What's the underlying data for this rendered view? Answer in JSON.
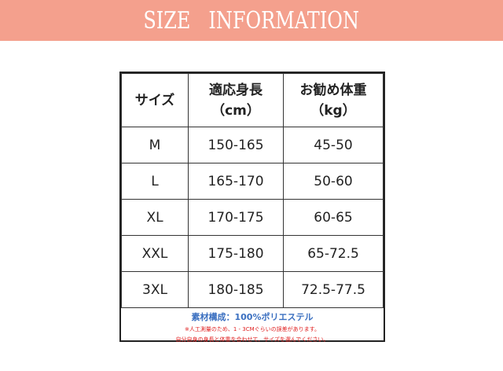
{
  "banner": {
    "title": "SIZE   INFORMATION",
    "color": "#f4a08d"
  },
  "table": {
    "headers": [
      [
        "サイズ"
      ],
      [
        "適応身長",
        "（cm）"
      ],
      [
        "お勧め体重",
        "（kg）"
      ]
    ],
    "rows": [
      [
        "M",
        "150-165",
        "45-50"
      ],
      [
        "L",
        "165-170",
        "50-60"
      ],
      [
        "XL",
        "170-175",
        "60-65"
      ],
      [
        "XXL",
        "175-180",
        "65-72.5"
      ],
      [
        "3XL",
        "180-185",
        "72.5-77.5"
      ]
    ]
  },
  "notes": {
    "material": "素材構成：100%ポリエステル",
    "note1": "※人工測量のため、1 - 3CMぐらいの誤差があります。",
    "note2": "自分自身の身長と体重を合わせて、サイズを選んでください。"
  }
}
